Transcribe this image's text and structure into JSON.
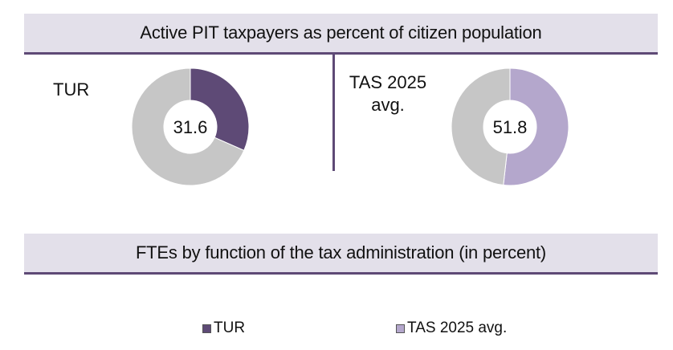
{
  "chart_data": [
    {
      "type": "pie",
      "title": "Active PIT taxpayers as percent of citizen population",
      "label": "TUR",
      "value": 31.6,
      "slices": [
        {
          "name": "TUR",
          "value": 31.6,
          "color": "#5e4a76"
        },
        {
          "name": "remainder",
          "value": 68.4,
          "color": "#c6c6c6"
        }
      ]
    },
    {
      "type": "pie",
      "label": "TAS 2025 avg.",
      "value": 51.8,
      "slices": [
        {
          "name": "TAS 2025 avg.",
          "value": 51.8,
          "color": "#b4a7cc"
        },
        {
          "name": "remainder",
          "value": 48.2,
          "color": "#c6c6c6"
        }
      ]
    }
  ],
  "section2": {
    "title": "FTEs by function of the tax administration (in percent)"
  },
  "legend": [
    {
      "label": "TUR",
      "color": "#5e4a76"
    },
    {
      "label": "TAS 2025 avg.",
      "color": "#b4a7cc"
    }
  ],
  "colors": {
    "banner_bg": "#e3e0ea",
    "accent": "#5e4a76",
    "ring_rest": "#c6c6c6"
  }
}
